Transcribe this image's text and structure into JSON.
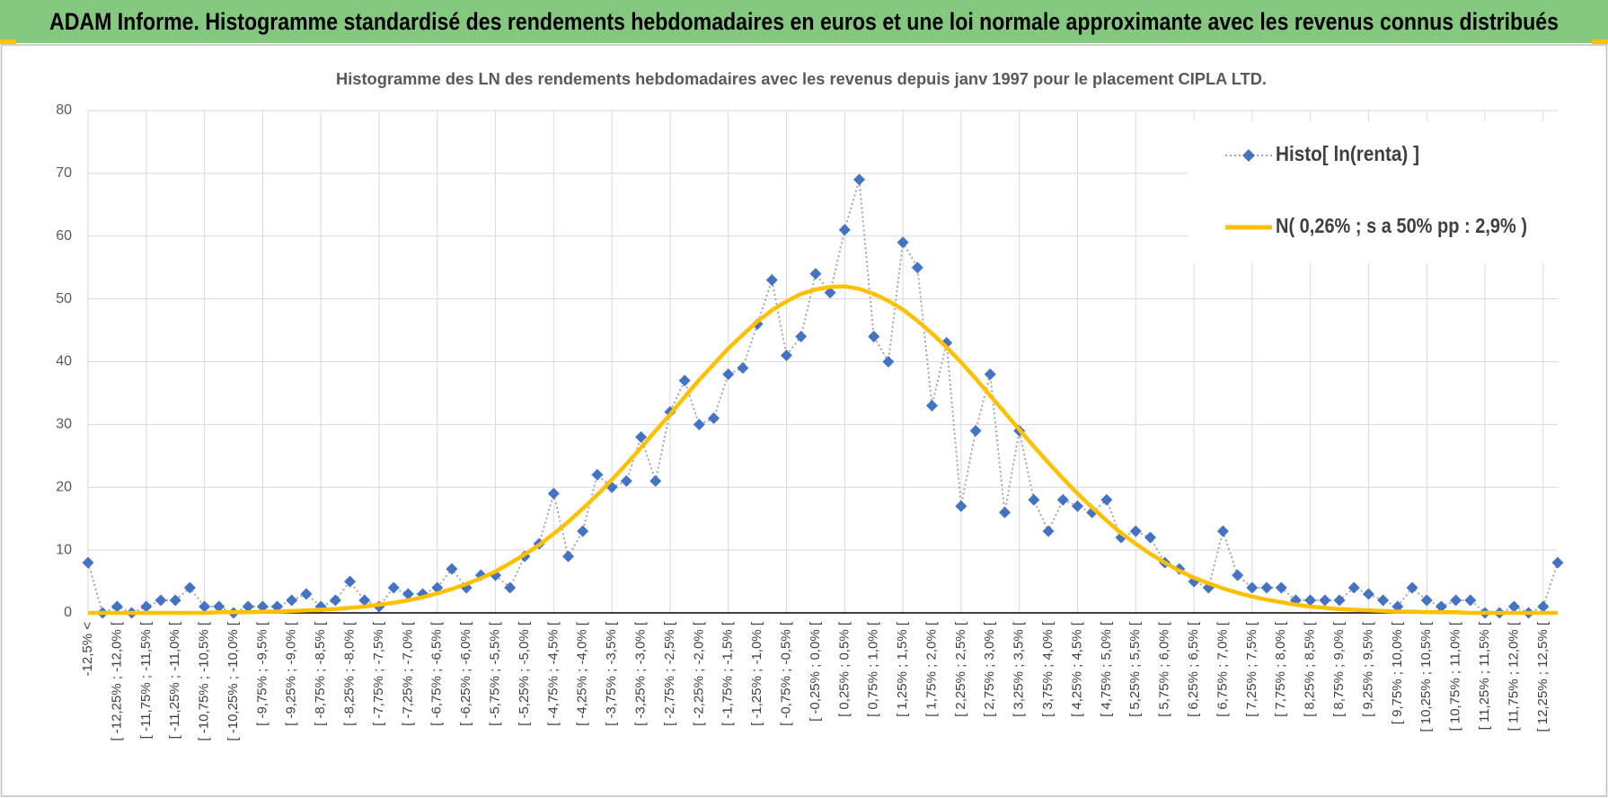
{
  "header": {
    "title": "ADAM Informe. Histogramme standardisé des rendements hebdomadaires en euros et une loi normale approximante avec les revenus connus distribués"
  },
  "chart_data": {
    "type": "line",
    "title": "Histogramme  des LN des rendements hebdomadaires avec les revenus depuis janv 1997 pour le placement CIPLA LTD.",
    "categories": [
      "-12,5% <",
      null,
      "[ -12,25% ; -12,0% [",
      null,
      "[ -11,75% ; -11,5% [",
      null,
      "[ -11,25% ; -11,0% [",
      null,
      "[ -10,75% ; -10,5% [",
      null,
      "[ -10,25% ; -10,0% [",
      null,
      "[ -9,75% ; -9,5% [",
      null,
      "[ -9,25% ; -9,0% [",
      null,
      "[ -8,75% ; -8,5% [",
      null,
      "[ -8,25% ; -8,0% [",
      null,
      "[ -7,75% ; -7,5% [",
      null,
      "[ -7,25% ; -7,0% [",
      null,
      "[ -6,75% ; -6,5% [",
      null,
      "[ -6,25% ; -6,0% [",
      null,
      "[ -5,75% ; -5,5% [",
      null,
      "[ -5,25% ; -5,0% [",
      null,
      "[ -4,75% ; -4,5% [",
      null,
      "[ -4,25% ; -4,0% [",
      null,
      "[ -3,75% ; -3,5% [",
      null,
      "[ -3,25% ; -3,0% [",
      null,
      "[ -2,75% ; -2,5% [",
      null,
      "[ -2,25% ; -2,0% [",
      null,
      "[ -1,75% ; -1,5% [",
      null,
      "[ -1,25% ; -1,0% [",
      null,
      "[ -0,75% ; -0,5% [",
      null,
      "[ -0,25% ; 0,0% [",
      null,
      "[ 0,25% ; 0,5% [",
      null,
      "[ 0,75% ; 1,0% [",
      null,
      "[ 1,25% ; 1,5% [",
      null,
      "[ 1,75% ; 2,0% [",
      null,
      "[ 2,25% ; 2,5% [",
      null,
      "[ 2,75% ; 3,0% [",
      null,
      "[ 3,25% ; 3,5% [",
      null,
      "[ 3,75% ; 4,0% [",
      null,
      "[ 4,25% ; 4,5% [",
      null,
      "[ 4,75% ; 5,0% [",
      null,
      "[ 5,25% ; 5,5% [",
      null,
      "[ 5,75% ; 6,0% [",
      null,
      "[ 6,25% ; 6,5% [",
      null,
      "[ 6,75% ; 7,0% [",
      null,
      "[ 7,25% ; 7,5% [",
      null,
      "[ 7,75% ; 8,0% [",
      null,
      "[ 8,25% ; 8,5% [",
      null,
      "[ 8,75% ; 9,0% [",
      null,
      "[ 9,25% ; 9,5% [",
      null,
      "[ 9,75% ; 10,0% [",
      null,
      "[ 10,25% ; 10,5% [",
      null,
      "[ 10,75% ; 11,0% [",
      null,
      "[ 11,25% ; 11,5% [",
      null,
      "[ 11,75% ; 12,0% [",
      null,
      "[ 12,25% ; 12,5% [",
      null
    ],
    "series": [
      {
        "name": "Histo[ ln(renta) ]",
        "color": "#4472c4",
        "line_color": "#a6a6a6",
        "values": [
          8,
          0,
          1,
          0,
          1,
          2,
          2,
          4,
          1,
          1,
          0,
          1,
          1,
          1,
          2,
          3,
          1,
          2,
          5,
          2,
          1,
          4,
          3,
          3,
          4,
          7,
          4,
          6,
          6,
          4,
          9,
          11,
          19,
          9,
          13,
          22,
          20,
          21,
          28,
          21,
          32,
          37,
          30,
          31,
          38,
          39,
          46,
          53,
          41,
          44,
          54,
          51,
          61,
          69,
          44,
          40,
          59,
          55,
          33,
          43,
          17,
          29,
          38,
          16,
          29,
          18,
          13,
          18,
          17,
          16,
          18,
          12,
          13,
          12,
          8,
          7,
          5,
          4,
          13,
          6,
          4,
          4,
          4,
          2,
          2,
          2,
          2,
          4,
          3,
          2,
          1,
          4,
          2,
          1,
          2,
          2,
          0,
          0,
          1,
          0,
          1,
          8
        ]
      },
      {
        "name": "N( 0,26% ; s a 50% pp : 2,9% )",
        "color": "#ffc000",
        "values": [
          0,
          0,
          0,
          0,
          0,
          0,
          0,
          0,
          0,
          0.1,
          0.1,
          0.1,
          0.2,
          0.2,
          0.3,
          0.4,
          0.5,
          0.6,
          0.8,
          1.0,
          1.3,
          1.6,
          2.0,
          2.5,
          3.1,
          3.8,
          4.6,
          5.5,
          6.6,
          7.9,
          9.3,
          10.8,
          12.6,
          14.5,
          16.6,
          18.8,
          21.2,
          23.7,
          26.3,
          29.0,
          31.6,
          34.4,
          37.1,
          39.6,
          42.1,
          44.3,
          46.4,
          48.2,
          49.6,
          50.8,
          51.5,
          51.9,
          52.0,
          51.6,
          50.8,
          49.7,
          48.3,
          46.5,
          44.5,
          42.3,
          39.9,
          37.3,
          34.6,
          31.9,
          29.2,
          26.5,
          23.9,
          21.4,
          19.0,
          16.8,
          14.7,
          12.7,
          11.0,
          9.4,
          8.0,
          6.7,
          5.6,
          4.7,
          3.9,
          3.2,
          2.6,
          2.1,
          1.7,
          1.3,
          1.0,
          0.8,
          0.6,
          0.5,
          0.4,
          0.3,
          0.2,
          0.2,
          0.1,
          0.1,
          0.1,
          0,
          0,
          0,
          0,
          0,
          0,
          0
        ]
      }
    ],
    "ylim": [
      0,
      80
    ],
    "yticks": [
      0,
      10,
      20,
      30,
      40,
      50,
      60,
      70,
      80
    ],
    "grid": true,
    "legend": "upper right"
  }
}
